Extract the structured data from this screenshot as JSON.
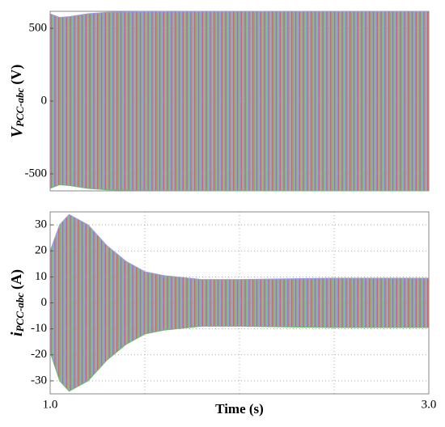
{
  "chart_data": [
    {
      "type": "band",
      "ylabel_main": "V",
      "ylabel_sub": "PCC-abc",
      "ylabel_unit": "(V)",
      "colors": [
        "#c86a6a",
        "#6fb86f",
        "#9a9ae8"
      ],
      "x": [
        1.0,
        1.05,
        1.1,
        1.2,
        1.3,
        1.5,
        2.0,
        2.5,
        3.0
      ],
      "upper": [
        600,
        575,
        580,
        600,
        610,
        615,
        617,
        617,
        617
      ],
      "lower": [
        -600,
        -575,
        -580,
        -600,
        -610,
        -615,
        -617,
        -617,
        -617
      ],
      "xlim": [
        1.0,
        3.0
      ],
      "ylim": [
        -617,
        617
      ],
      "xgrid": [
        1.5,
        2.0,
        2.5
      ],
      "yticks": [
        -500,
        0,
        500
      ],
      "grid": true
    },
    {
      "type": "band",
      "ylabel_main": "i",
      "ylabel_sub": "PCC-abc",
      "ylabel_unit": "(A)",
      "xlabel": "Time (s)",
      "colors": [
        "#c86a6a",
        "#6fb86f",
        "#9a9ae8"
      ],
      "x": [
        1.0,
        1.05,
        1.1,
        1.2,
        1.3,
        1.4,
        1.5,
        1.6,
        1.8,
        2.0,
        2.5,
        3.0
      ],
      "upper": [
        20,
        30,
        34,
        30,
        22,
        16,
        12,
        10.5,
        9,
        9,
        9.5,
        9.5
      ],
      "lower": [
        -19,
        -30,
        -34,
        -30,
        -22,
        -16,
        -12,
        -10.5,
        -9,
        -9,
        -9.5,
        -9.5
      ],
      "xlim": [
        1.0,
        3.0
      ],
      "ylim": [
        -35,
        35
      ],
      "xgrid": [
        1.5,
        2.0,
        2.5
      ],
      "xticks": [
        {
          "value": 1.0,
          "label": "1.0"
        },
        {
          "value": 3.0,
          "label": "3.0"
        }
      ],
      "yticks": [
        -30,
        -20,
        -10,
        0,
        10,
        20,
        30
      ],
      "grid": true
    }
  ]
}
